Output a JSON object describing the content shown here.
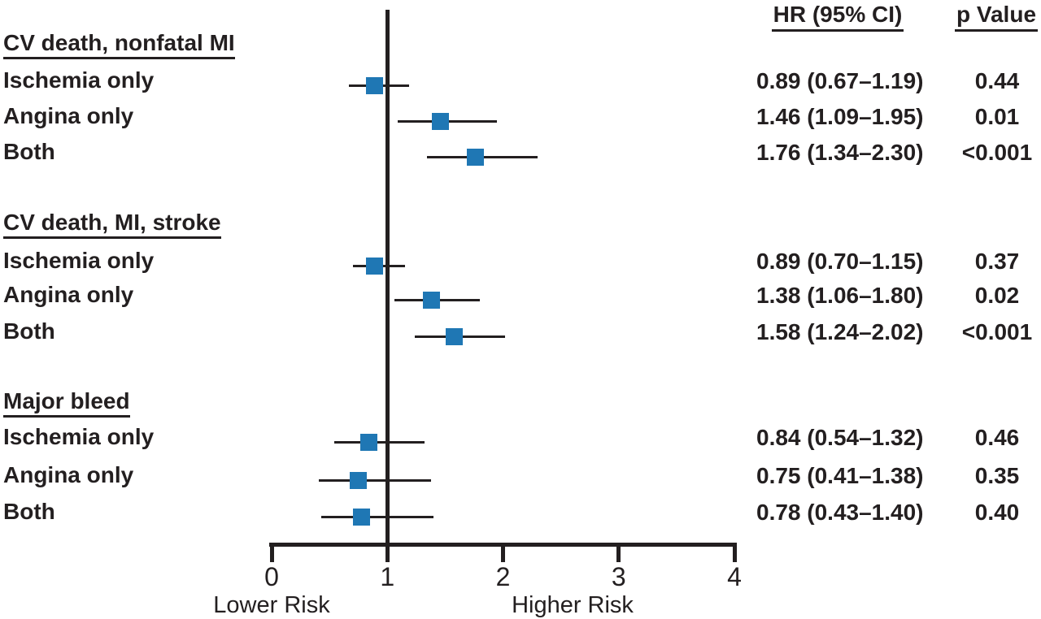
{
  "figure": {
    "kind": "forest-plot",
    "text_color": "#231f20",
    "marker_color": "#1f77b4"
  },
  "columns": {
    "hr_header": "HR (95% CI)",
    "p_header": "p Value"
  },
  "axis": {
    "xlim": [
      0,
      4
    ],
    "ticks": [
      0,
      1,
      2,
      3,
      4
    ],
    "ref_line": 1,
    "lower_label": "Lower Risk",
    "higher_label": "Higher Risk"
  },
  "chart_data": {
    "type": "scatter",
    "subtype": "forest",
    "title": "",
    "xlabel": "",
    "ylabel": "",
    "xlim": [
      0,
      4
    ],
    "x_ticks": [
      0,
      1,
      2,
      3,
      4
    ],
    "reference_line_x": 1,
    "legend": null,
    "grid": false,
    "annotations": [
      "Lower Risk",
      "Higher Risk"
    ],
    "groups": [
      {
        "title": "CV death, nonfatal MI",
        "rows": [
          {
            "label": "Ischemia only",
            "hr": 0.89,
            "ci_low": 0.67,
            "ci_high": 1.19,
            "hr_text": "0.89 (0.67–1.19)",
            "p": "0.44"
          },
          {
            "label": "Angina only",
            "hr": 1.46,
            "ci_low": 1.09,
            "ci_high": 1.95,
            "hr_text": "1.46 (1.09–1.95)",
            "p": "0.01"
          },
          {
            "label": "Both",
            "hr": 1.76,
            "ci_low": 1.34,
            "ci_high": 2.3,
            "hr_text": "1.76 (1.34–2.30)",
            "p": "<0.001"
          }
        ]
      },
      {
        "title": "CV death, MI, stroke",
        "rows": [
          {
            "label": "Ischemia only",
            "hr": 0.89,
            "ci_low": 0.7,
            "ci_high": 1.15,
            "hr_text": "0.89 (0.70–1.15)",
            "p": "0.37"
          },
          {
            "label": "Angina only",
            "hr": 1.38,
            "ci_low": 1.06,
            "ci_high": 1.8,
            "hr_text": "1.38 (1.06–1.80)",
            "p": "0.02"
          },
          {
            "label": "Both",
            "hr": 1.58,
            "ci_low": 1.24,
            "ci_high": 2.02,
            "hr_text": "1.58 (1.24–2.02)",
            "p": "<0.001"
          }
        ]
      },
      {
        "title": "Major bleed",
        "rows": [
          {
            "label": "Ischemia only",
            "hr": 0.84,
            "ci_low": 0.54,
            "ci_high": 1.32,
            "hr_text": "0.84 (0.54–1.32)",
            "p": "0.46"
          },
          {
            "label": "Angina only",
            "hr": 0.75,
            "ci_low": 0.41,
            "ci_high": 1.38,
            "hr_text": "0.75 (0.41–1.38)",
            "p": "0.35"
          },
          {
            "label": "Both",
            "hr": 0.78,
            "ci_low": 0.43,
            "ci_high": 1.4,
            "hr_text": "0.78 (0.43–1.40)",
            "p": "0.40"
          }
        ]
      }
    ]
  }
}
